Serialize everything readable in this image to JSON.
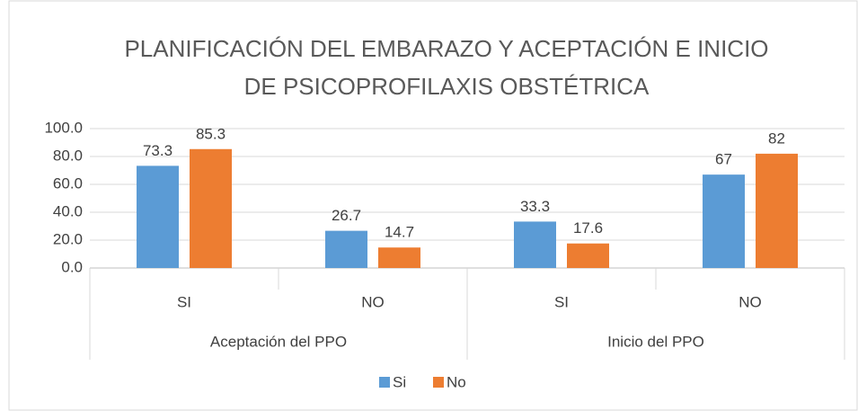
{
  "chart_data": {
    "type": "bar",
    "title": [
      "PLANIFICACIÓN DEL EMBARAZO Y ACEPTACIÓN E INICIO",
      "DE PSICOPROFILAXIS OBSTÉTRICA"
    ],
    "categories": [
      "SI",
      "NO",
      "SI",
      "NO"
    ],
    "groups": [
      {
        "name": "Aceptación del PPO",
        "size": 2
      },
      {
        "name": "Inicio del PPO",
        "size": 2
      }
    ],
    "series": [
      {
        "name": "Si",
        "color": "#5b9bd5",
        "values": [
          73.3,
          26.7,
          33.3,
          67
        ]
      },
      {
        "name": "No",
        "color": "#ed7d31",
        "values": [
          85.3,
          14.7,
          17.6,
          82
        ]
      }
    ],
    "ylim": [
      0,
      100
    ],
    "yticks": [
      {
        "value": 0,
        "label": "0.0"
      },
      {
        "value": 20,
        "label": "20.0"
      },
      {
        "value": 40,
        "label": "40.0"
      },
      {
        "value": 60,
        "label": "60.0"
      },
      {
        "value": 80,
        "label": "80.0"
      },
      {
        "value": 100,
        "label": "100.0"
      }
    ],
    "grid": true,
    "legend": "bottom"
  }
}
